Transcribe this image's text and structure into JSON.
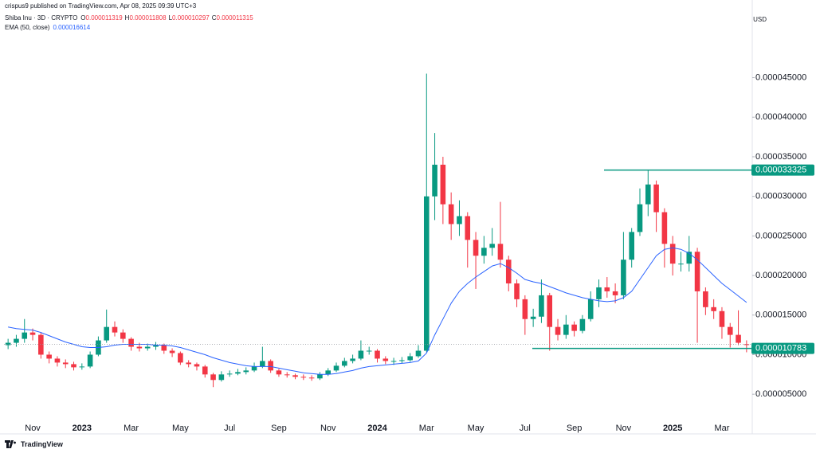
{
  "header": {
    "published": "crispus9 published on TradingView.com, Apr 08, 2025 09:39 UTC+3",
    "symbol": "Shiba Inu · 3D · CRYPTO",
    "ohlc": [
      {
        "key": "O",
        "value": "0.000011319"
      },
      {
        "key": "H",
        "value": "0.000011808"
      },
      {
        "key": "L",
        "value": "0.000010297"
      },
      {
        "key": "C",
        "value": "0.000011315"
      }
    ],
    "ema_label": "EMA (50, close)",
    "ema_value": "0.000016614",
    "currency": "USD",
    "logo": "TradingView"
  },
  "chart_data": {
    "type": "candlestick",
    "up_color": "#089981",
    "down_color": "#f23645",
    "categories": [
      null,
      null,
      null,
      "Nov",
      null,
      null,
      null,
      null,
      null,
      "2023",
      null,
      null,
      null,
      null,
      null,
      "Mar",
      null,
      null,
      null,
      null,
      null,
      "May",
      null,
      null,
      null,
      null,
      null,
      "Jul",
      null,
      null,
      null,
      null,
      null,
      "Sep",
      null,
      null,
      null,
      null,
      null,
      "Nov",
      null,
      null,
      null,
      null,
      null,
      "2024",
      null,
      null,
      null,
      null,
      null,
      "Mar",
      null,
      null,
      null,
      null,
      null,
      "May",
      null,
      null,
      null,
      null,
      null,
      "Jul",
      null,
      null,
      null,
      null,
      null,
      "Sep",
      null,
      null,
      null,
      null,
      null,
      "Nov",
      null,
      null,
      null,
      null,
      null,
      "2025",
      null,
      null,
      null,
      null,
      null,
      "Mar",
      null,
      null,
      null
    ],
    "open": [
      1.12e-05,
      1.15e-05,
      1.2e-05,
      1.28e-05,
      1.25e-05,
      1e-05,
      9.5e-06,
      9e-06,
      8.8e-06,
      8.4e-06,
      8.5e-06,
      1e-05,
      1.18e-05,
      1.35e-05,
      1.28e-05,
      1.2e-05,
      1.1e-05,
      1.08e-05,
      1.1e-05,
      1.12e-05,
      1.05e-05,
      1.02e-05,
      9e-06,
      8.8e-06,
      8.5e-06,
      7.5e-06,
      6.8e-06,
      7.5e-06,
      7.6e-06,
      7.8e-06,
      8e-06,
      8.5e-06,
      9.2e-06,
      8e-06,
      7.5e-06,
      7.4e-06,
      7.2e-06,
      7.1e-06,
      7e-06,
      7.5e-06,
      8e-06,
      8.6e-06,
      9.2e-06,
      9.5e-06,
      1.05e-05,
      1.05e-05,
      9.5e-06,
      9.2e-06,
      9.2e-06,
      9.3e-06,
      9.8e-06,
      1.05e-05,
      3e-05,
      3.4e-05,
      2.9e-05,
      2.65e-05,
      2.75e-05,
      2.45e-05,
      2.25e-05,
      2.35e-05,
      2.4e-05,
      2.2e-05,
      1.9e-05,
      1.7e-05,
      1.45e-05,
      1.48e-05,
      1.75e-05,
      1.35e-05,
      1.25e-05,
      1.38e-05,
      1.3e-05,
      1.45e-05,
      1.7e-05,
      1.85e-05,
      1.8e-05,
      1.75e-05,
      2.2e-05,
      2.55e-05,
      2.9e-05,
      3.15e-05,
      2.8e-05,
      2.4e-05,
      2.15e-05,
      2.15e-05,
      2.3e-05,
      1.8e-05,
      1.6e-05,
      1.55e-05,
      1.35e-05,
      1.25e-05,
      1.1319e-05
    ],
    "high": [
      1.2e-05,
      1.25e-05,
      1.45e-05,
      1.33e-05,
      1.28e-05,
      1.04e-05,
      9.8e-06,
      9.4e-06,
      9.1e-06,
      8.9e-06,
      1.04e-05,
      1.23e-05,
      1.57e-05,
      1.42e-05,
      1.32e-05,
      1.22e-05,
      1.15e-05,
      1.14e-05,
      1.16e-05,
      1.14e-05,
      1.08e-05,
      1.04e-05,
      9.3e-06,
      9e-06,
      8.7e-06,
      7.7e-06,
      7.9e-06,
      8e-06,
      8.2e-06,
      8.4e-06,
      9e-06,
      1.1e-05,
      9.4e-06,
      8.2e-06,
      7.8e-06,
      7.6e-06,
      7.5e-06,
      7.4e-06,
      7.8e-06,
      8.3e-06,
      9e-06,
      9.6e-06,
      1e-05,
      1.18e-05,
      1.1e-05,
      1.07e-05,
      9.8e-06,
      9.6e-06,
      9.7e-06,
      1.02e-05,
      1.12e-05,
      4.55e-05,
      3.8e-05,
      3.5e-05,
      3.05e-05,
      2.95e-05,
      2.8e-05,
      2.55e-05,
      2.5e-05,
      2.6e-05,
      2.93e-05,
      2.25e-05,
      1.95e-05,
      1.75e-05,
      1.58e-05,
      1.95e-05,
      1.78e-05,
      1.45e-05,
      1.5e-05,
      1.42e-05,
      1.5e-05,
      1.8e-05,
      1.95e-05,
      1.98e-05,
      1.9e-05,
      2.55e-05,
      2.6e-05,
      3.1e-05,
      3.33e-05,
      3.2e-05,
      2.85e-05,
      2.5e-05,
      2.3e-05,
      2.5e-05,
      2.35e-05,
      1.85e-05,
      1.7e-05,
      1.6e-05,
      1.4e-05,
      1.56e-05,
      1.1808e-05
    ],
    "low": [
      1.07e-05,
      1.1e-05,
      1.15e-05,
      1.18e-05,
      9.5e-06,
      8.9e-06,
      8.5e-06,
      8.3e-06,
      8e-06,
      8.1e-06,
      8.3e-06,
      9.8e-06,
      1.15e-05,
      1.23e-05,
      1.15e-05,
      1.05e-05,
      1.04e-05,
      1.05e-05,
      1.06e-05,
      1.01e-05,
      9.7e-06,
      8.7e-06,
      8.4e-06,
      8e-06,
      7.1e-06,
      5.9e-06,
      6.6e-06,
      7.2e-06,
      7.4e-06,
      7.5e-06,
      7.8e-06,
      8.3e-06,
      7.7e-06,
      7.2e-06,
      7.1e-06,
      6.9e-06,
      6.8e-06,
      6.7e-06,
      6.8e-06,
      7.3e-06,
      7.8e-06,
      8.4e-06,
      8.9e-06,
      9.3e-06,
      1e-05,
      9e-06,
      8.8e-06,
      8.7e-06,
      8.9e-06,
      9.1e-06,
      9.6e-06,
      1.03e-05,
      2.7e-05,
      2.65e-05,
      2.45e-05,
      2.5e-05,
      2.1e-05,
      1.83e-05,
      2.15e-05,
      2.25e-05,
      2.1e-05,
      1.8e-05,
      1.6e-05,
      1.25e-05,
      1.35e-05,
      1.4e-05,
      1.05e-05,
      1.18e-05,
      1.2e-05,
      1.23e-05,
      1.27e-05,
      1.42e-05,
      1.6e-05,
      1.72e-05,
      1.65e-05,
      1.7e-05,
      2.1e-05,
      2.5e-05,
      2.75e-05,
      2.55e-05,
      2.1e-05,
      2e-05,
      2.05e-05,
      2.05e-05,
      1.15e-05,
      1.5e-05,
      1.45e-05,
      1.2e-05,
      1.09e-05,
      1.12e-05,
      1.0297e-05
    ],
    "close": [
      1.15e-05,
      1.2e-05,
      1.28e-05,
      1.25e-05,
      1e-05,
      9.5e-06,
      9e-06,
      8.8e-06,
      8.4e-06,
      8.5e-06,
      1e-05,
      1.18e-05,
      1.35e-05,
      1.28e-05,
      1.2e-05,
      1.1e-05,
      1.08e-05,
      1.1e-05,
      1.12e-05,
      1.05e-05,
      1.02e-05,
      9e-06,
      8.8e-06,
      8.5e-06,
      7.5e-06,
      6.8e-06,
      7.5e-06,
      7.6e-06,
      7.8e-06,
      8e-06,
      8.5e-06,
      9.2e-06,
      8e-06,
      7.5e-06,
      7.4e-06,
      7.2e-06,
      7.1e-06,
      7e-06,
      7.5e-06,
      8e-06,
      8.6e-06,
      9.2e-06,
      9.5e-06,
      1.05e-05,
      1.05e-05,
      9.5e-06,
      9.2e-06,
      9.2e-06,
      9.3e-06,
      9.8e-06,
      1.05e-05,
      3e-05,
      3.4e-05,
      2.9e-05,
      2.65e-05,
      2.75e-05,
      2.45e-05,
      2.25e-05,
      2.35e-05,
      2.4e-05,
      2.2e-05,
      1.9e-05,
      1.7e-05,
      1.45e-05,
      1.48e-05,
      1.75e-05,
      1.35e-05,
      1.25e-05,
      1.38e-05,
      1.3e-05,
      1.45e-05,
      1.7e-05,
      1.85e-05,
      1.8e-05,
      1.75e-05,
      2.2e-05,
      2.55e-05,
      2.9e-05,
      3.15e-05,
      2.8e-05,
      2.4e-05,
      2.15e-05,
      2.15e-05,
      2.3e-05,
      1.8e-05,
      1.6e-05,
      1.55e-05,
      1.35e-05,
      1.25e-05,
      1.15e-05,
      1.1315e-05
    ],
    "ema": {
      "color": "#2962ff",
      "values": [
        1.35e-05,
        1.33e-05,
        1.32e-05,
        1.31e-05,
        1.28e-05,
        1.24e-05,
        1.2e-05,
        1.16e-05,
        1.13e-05,
        1.1e-05,
        1.09e-05,
        1.09e-05,
        1.1e-05,
        1.12e-05,
        1.13e-05,
        1.13e-05,
        1.13e-05,
        1.13e-05,
        1.12e-05,
        1.12e-05,
        1.11e-05,
        1.09e-05,
        1.06e-05,
        1.03e-05,
        1e-05,
        9.6e-06,
        9.3e-06,
        9e-06,
        8.8e-06,
        8.6e-06,
        8.5e-06,
        8.5e-06,
        8.5e-06,
        8.3e-06,
        8.1e-06,
        7.9e-06,
        7.7e-06,
        7.6e-06,
        7.5e-06,
        7.5e-06,
        7.6e-06,
        7.8e-06,
        8e-06,
        8.3e-06,
        8.5e-06,
        8.6e-06,
        8.7e-06,
        8.8e-06,
        8.9e-06,
        9e-06,
        9.2e-06,
        1.02e-05,
        1.25e-05,
        1.45e-05,
        1.65e-05,
        1.8e-05,
        1.9e-05,
        1.98e-05,
        2.05e-05,
        2.12e-05,
        2.15e-05,
        2.1e-05,
        2.03e-05,
        1.95e-05,
        1.92e-05,
        1.9e-05,
        1.86e-05,
        1.82e-05,
        1.78e-05,
        1.75e-05,
        1.72e-05,
        1.7e-05,
        1.68e-05,
        1.67e-05,
        1.68e-05,
        1.72e-05,
        1.8e-05,
        1.95e-05,
        2.1e-05,
        2.25e-05,
        2.33e-05,
        2.35e-05,
        2.33e-05,
        2.28e-05,
        2.2e-05,
        2.1e-05,
        2e-05,
        1.9e-05,
        1.82e-05,
        1.74e-05,
        1.66e-05
      ]
    },
    "ylim": [
      2e-06,
      5.33e-05
    ],
    "yticks": [
      {
        "value": 5e-06,
        "label": "0.000005000"
      },
      {
        "value": 1e-05,
        "label": "0.000010000"
      },
      {
        "value": 1.5e-05,
        "label": "0.000015000"
      },
      {
        "value": 2e-05,
        "label": "0.000020000"
      },
      {
        "value": 2.5e-05,
        "label": "0.000025000"
      },
      {
        "value": 3e-05,
        "label": "0.000030000"
      },
      {
        "value": 3.5e-05,
        "label": "0.000035000"
      },
      {
        "value": 4e-05,
        "label": "0.000040000"
      },
      {
        "value": 4.5e-05,
        "label": "0.000045000"
      }
    ],
    "hlines": [
      {
        "value": 3.3325e-05,
        "color": "#089981"
      },
      {
        "value": 1.0783e-05,
        "color": "#089981"
      }
    ],
    "grid": false
  }
}
